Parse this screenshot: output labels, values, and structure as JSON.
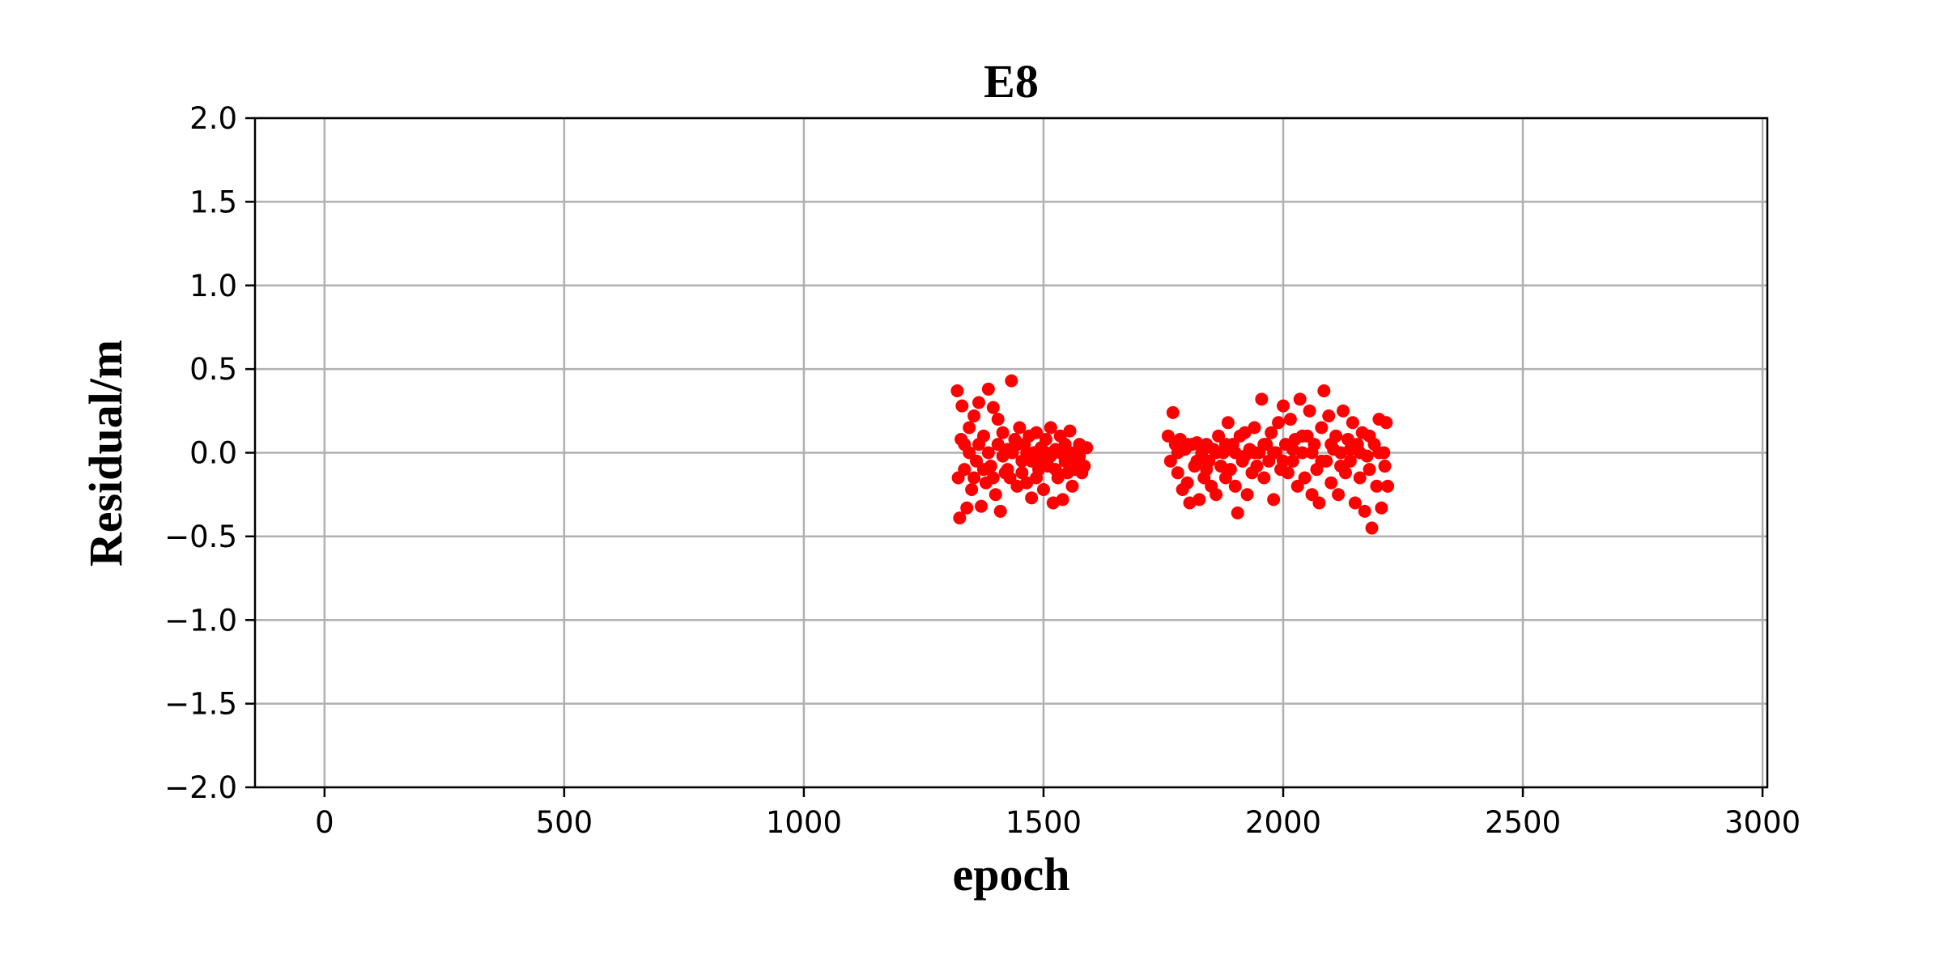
{
  "chart_data": {
    "type": "scatter",
    "title": "E8",
    "xlabel": "epoch",
    "ylabel": "Residual/m",
    "xlim": [
      -145,
      3010
    ],
    "ylim": [
      -2.0,
      2.0
    ],
    "xticks": [
      0,
      500,
      1000,
      1500,
      2000,
      2500,
      3000
    ],
    "xtick_labels": [
      "0",
      "500",
      "1000",
      "1500",
      "2000",
      "2500",
      "3000"
    ],
    "yticks": [
      2.0,
      1.5,
      1.0,
      0.5,
      0.0,
      -0.5,
      -1.0,
      -1.5,
      -2.0
    ],
    "ytick_labels": [
      "2.0",
      "1.5",
      "1.0",
      "0.5",
      "0.0",
      "−0.5",
      "−1.0",
      "−1.5",
      "−2.0"
    ],
    "grid": true,
    "marker_color": "#ff0000",
    "series": [
      {
        "points": [
          [
            1320,
            0.37
          ],
          [
            1325,
            -0.39
          ],
          [
            1330,
            0.28
          ],
          [
            1322,
            -0.15
          ],
          [
            1335,
            0.05
          ],
          [
            1340,
            -0.33
          ],
          [
            1328,
            0.08
          ],
          [
            1345,
            0.15
          ],
          [
            1350,
            -0.22
          ],
          [
            1355,
            0.22
          ],
          [
            1360,
            -0.05
          ],
          [
            1365,
            0.3
          ],
          [
            1370,
            -0.32
          ],
          [
            1375,
            0.1
          ],
          [
            1380,
            -0.18
          ],
          [
            1385,
            0.38
          ],
          [
            1390,
            -0.08
          ],
          [
            1395,
            0.27
          ],
          [
            1400,
            -0.25
          ],
          [
            1405,
            0.05
          ],
          [
            1410,
            -0.35
          ],
          [
            1415,
            0.12
          ],
          [
            1420,
            -0.12
          ],
          [
            1425,
            0.02
          ],
          [
            1433,
            0.43
          ],
          [
            1430,
            -0.15
          ],
          [
            1440,
            0.08
          ],
          [
            1445,
            -0.2
          ],
          [
            1450,
            0.15
          ],
          [
            1455,
            -0.05
          ],
          [
            1460,
            0.05
          ],
          [
            1465,
            -0.18
          ],
          [
            1470,
            0.1
          ],
          [
            1475,
            -0.27
          ],
          [
            1480,
            0.0
          ],
          [
            1485,
            0.12
          ],
          [
            1490,
            -0.1
          ],
          [
            1495,
            0.03
          ],
          [
            1500,
            -0.22
          ],
          [
            1505,
            0.08
          ],
          [
            1510,
            -0.08
          ],
          [
            1515,
            0.15
          ],
          [
            1520,
            -0.3
          ],
          [
            1525,
            0.02
          ],
          [
            1530,
            -0.15
          ],
          [
            1535,
            0.1
          ],
          [
            1540,
            -0.28
          ],
          [
            1545,
            0.05
          ],
          [
            1550,
            -0.12
          ],
          [
            1555,
            0.13
          ],
          [
            1560,
            -0.2
          ],
          [
            1565,
            0.0
          ],
          [
            1570,
            -0.05
          ],
          [
            1575,
            0.05
          ],
          [
            1580,
            -0.12
          ],
          [
            1585,
            -0.08
          ],
          [
            1590,
            0.03
          ],
          [
            1335,
            -0.1
          ],
          [
            1345,
            0.0
          ],
          [
            1355,
            -0.15
          ],
          [
            1365,
            0.05
          ],
          [
            1375,
            -0.1
          ],
          [
            1385,
            0.0
          ],
          [
            1395,
            -0.15
          ],
          [
            1405,
            0.2
          ],
          [
            1415,
            -0.02
          ],
          [
            1425,
            -0.1
          ],
          [
            1435,
            0.0
          ],
          [
            1445,
            0.05
          ],
          [
            1455,
            -0.12
          ],
          [
            1465,
            0.0
          ],
          [
            1475,
            -0.05
          ],
          [
            1485,
            -0.15
          ],
          [
            1495,
            -0.05
          ],
          [
            1505,
            0.0
          ],
          [
            1515,
            -0.02
          ],
          [
            1525,
            -0.1
          ],
          [
            1535,
            0.0
          ],
          [
            1545,
            -0.05
          ],
          [
            1555,
            0.0
          ],
          [
            1565,
            -0.1
          ],
          [
            1575,
            -0.02
          ],
          [
            1760,
            0.1
          ],
          [
            1765,
            -0.05
          ],
          [
            1770,
            0.24
          ],
          [
            1775,
            0.05
          ],
          [
            1780,
            -0.12
          ],
          [
            1785,
            0.08
          ],
          [
            1790,
            -0.22
          ],
          [
            1795,
            0.02
          ],
          [
            1800,
            -0.18
          ],
          [
            1805,
            -0.3
          ],
          [
            1810,
            0.05
          ],
          [
            1815,
            -0.08
          ],
          [
            1820,
            0.06
          ],
          [
            1825,
            -0.28
          ],
          [
            1830,
            0.0
          ],
          [
            1835,
            -0.15
          ],
          [
            1840,
            0.05
          ],
          [
            1845,
            -0.05
          ],
          [
            1850,
            -0.2
          ],
          [
            1855,
            0.02
          ],
          [
            1860,
            -0.25
          ],
          [
            1865,
            0.1
          ],
          [
            1870,
            -0.08
          ],
          [
            1875,
            0.0
          ],
          [
            1880,
            -0.15
          ],
          [
            1885,
            0.18
          ],
          [
            1890,
            -0.1
          ],
          [
            1895,
            0.05
          ],
          [
            1900,
            -0.2
          ],
          [
            1905,
            -0.36
          ],
          [
            1910,
            0.1
          ],
          [
            1915,
            -0.05
          ],
          [
            1920,
            0.12
          ],
          [
            1925,
            -0.25
          ],
          [
            1930,
            0.02
          ],
          [
            1935,
            -0.12
          ],
          [
            1940,
            0.15
          ],
          [
            1945,
            -0.08
          ],
          [
            1950,
            0.0
          ],
          [
            1955,
            0.32
          ],
          [
            1960,
            -0.15
          ],
          [
            1965,
            0.05
          ],
          [
            1970,
            -0.05
          ],
          [
            1975,
            0.12
          ],
          [
            1980,
            -0.28
          ],
          [
            1985,
            0.0
          ],
          [
            1990,
            0.18
          ],
          [
            1995,
            -0.1
          ],
          [
            2000,
            0.28
          ],
          [
            2005,
            0.05
          ],
          [
            2010,
            -0.12
          ],
          [
            2015,
            0.2
          ],
          [
            2020,
            -0.05
          ],
          [
            2025,
            0.08
          ],
          [
            2030,
            -0.2
          ],
          [
            2035,
            0.32
          ],
          [
            2040,
            0.0
          ],
          [
            2045,
            -0.15
          ],
          [
            2050,
            0.1
          ],
          [
            2055,
            0.25
          ],
          [
            2060,
            -0.25
          ],
          [
            2065,
            0.05
          ],
          [
            2070,
            -0.1
          ],
          [
            2075,
            -0.3
          ],
          [
            2080,
            0.15
          ],
          [
            2085,
            0.37
          ],
          [
            2090,
            -0.05
          ],
          [
            2095,
            0.22
          ],
          [
            2100,
            -0.18
          ],
          [
            2105,
            0.02
          ],
          [
            2110,
            0.1
          ],
          [
            2115,
            -0.25
          ],
          [
            2120,
            0.0
          ],
          [
            2125,
            0.25
          ],
          [
            2130,
            -0.12
          ],
          [
            2135,
            0.08
          ],
          [
            2140,
            -0.05
          ],
          [
            2145,
            0.18
          ],
          [
            2150,
            -0.3
          ],
          [
            2155,
            0.05
          ],
          [
            2160,
            -0.15
          ],
          [
            2165,
            0.12
          ],
          [
            2170,
            -0.35
          ],
          [
            2175,
            -0.02
          ],
          [
            2180,
            0.1
          ],
          [
            2185,
            -0.45
          ],
          [
            2190,
            0.05
          ],
          [
            2195,
            -0.2
          ],
          [
            2200,
            0.2
          ],
          [
            2205,
            -0.33
          ],
          [
            2210,
            0.0
          ],
          [
            2215,
            0.18
          ],
          [
            2218,
            -0.2
          ],
          [
            2212,
            -0.08
          ],
          [
            1780,
            0.0
          ],
          [
            1800,
            0.05
          ],
          [
            1820,
            -0.05
          ],
          [
            1840,
            -0.1
          ],
          [
            1860,
            0.0
          ],
          [
            1880,
            0.05
          ],
          [
            1900,
            0.0
          ],
          [
            1920,
            -0.02
          ],
          [
            1940,
            0.0
          ],
          [
            1960,
            0.05
          ],
          [
            1980,
            0.0
          ],
          [
            2000,
            -0.05
          ],
          [
            2020,
            0.02
          ],
          [
            2040,
            0.1
          ],
          [
            2060,
            0.0
          ],
          [
            2080,
            -0.05
          ],
          [
            2100,
            0.05
          ],
          [
            2120,
            -0.08
          ],
          [
            2140,
            0.02
          ],
          [
            2160,
            0.0
          ],
          [
            2180,
            -0.1
          ],
          [
            2200,
            0.0
          ]
        ]
      }
    ]
  }
}
